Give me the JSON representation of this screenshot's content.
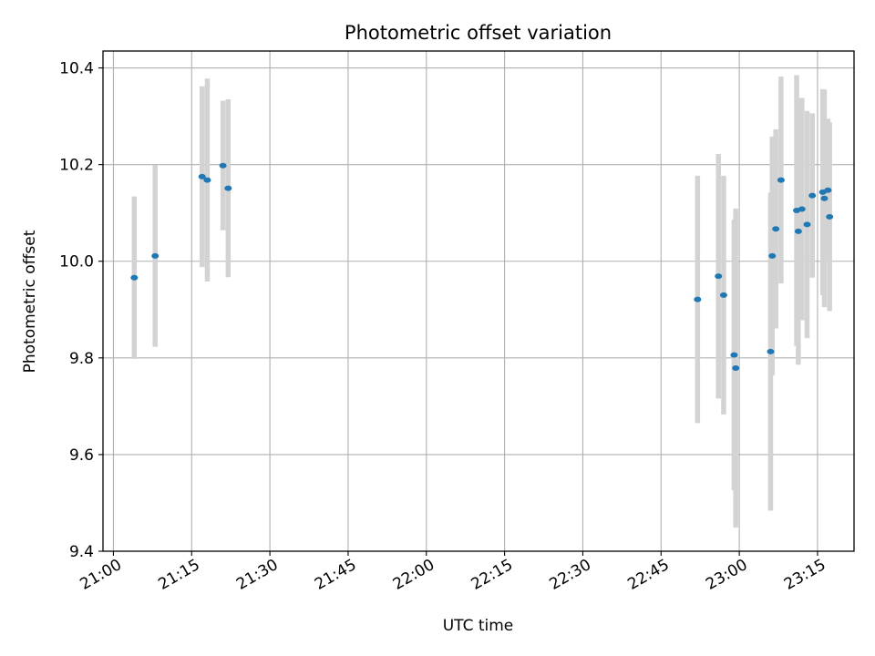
{
  "chart_data": {
    "type": "scatter",
    "title": "Photometric offset variation",
    "xlabel": "UTC time",
    "ylabel": "Photometric offset",
    "x_tick_labels": [
      "21:00",
      "21:15",
      "21:30",
      "21:45",
      "22:00",
      "22:15",
      "22:30",
      "22:45",
      "23:00",
      "23:15"
    ],
    "y_tick_labels": [
      "9.4",
      "9.6",
      "9.8",
      "10.0",
      "10.2",
      "10.4"
    ],
    "x_ticks": [
      "21:00",
      "21:15",
      "21:30",
      "21:45",
      "22:00",
      "22:15",
      "22:30",
      "22:45",
      "23:00",
      "23:15"
    ],
    "y_ticks": [
      9.4,
      9.6,
      9.8,
      10.0,
      10.2,
      10.4
    ],
    "xlim": [
      "20:58",
      "23:22"
    ],
    "ylim": [
      9.4,
      10.435
    ],
    "grid": true,
    "marker_color": "#1f77b4",
    "errorbar_color": "#d3d3d3",
    "points": [
      {
        "time": "21:04",
        "y": 9.966,
        "yerr": 0.168
      },
      {
        "time": "21:08",
        "y": 10.011,
        "yerr": 0.188
      },
      {
        "time": "21:17",
        "y": 10.175,
        "yerr": 0.187
      },
      {
        "time": "21:18",
        "y": 10.168,
        "yerr": 0.21
      },
      {
        "time": "21:21",
        "y": 10.198,
        "yerr": 0.134
      },
      {
        "time": "21:22",
        "y": 10.151,
        "yerr": 0.184
      },
      {
        "time": "22:52",
        "y": 9.921,
        "yerr": 0.256
      },
      {
        "time": "22:56",
        "y": 9.969,
        "yerr": 0.253
      },
      {
        "time": "22:57",
        "y": 9.93,
        "yerr": 0.247
      },
      {
        "time": "22:59",
        "y": 9.806,
        "yerr": 0.28
      },
      {
        "time": "22:59",
        "y": 9.779,
        "yerr": 0.33
      },
      {
        "time": "23:06",
        "y": 9.813,
        "yerr": 0.329
      },
      {
        "time": "23:06",
        "y": 10.011,
        "yerr": 0.247
      },
      {
        "time": "23:07",
        "y": 10.067,
        "yerr": 0.206
      },
      {
        "time": "23:08",
        "y": 10.168,
        "yerr": 0.214
      },
      {
        "time": "23:11",
        "y": 10.105,
        "yerr": 0.28
      },
      {
        "time": "23:11",
        "y": 10.062,
        "yerr": 0.276
      },
      {
        "time": "23:12",
        "y": 10.108,
        "yerr": 0.23
      },
      {
        "time": "23:13",
        "y": 10.076,
        "yerr": 0.235
      },
      {
        "time": "23:14",
        "y": 10.136,
        "yerr": 0.17
      },
      {
        "time": "23:16",
        "y": 10.143,
        "yerr": 0.213
      },
      {
        "time": "23:16",
        "y": 10.13,
        "yerr": 0.225
      },
      {
        "time": "23:17",
        "y": 10.147,
        "yerr": 0.148
      },
      {
        "time": "23:17",
        "y": 10.092,
        "yerr": 0.195
      }
    ]
  }
}
